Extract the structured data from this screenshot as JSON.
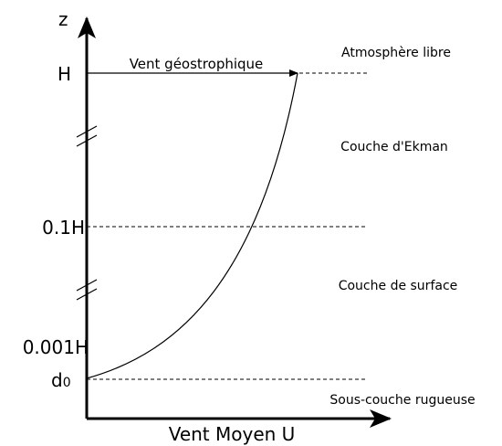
{
  "axes": {
    "z": "z",
    "x": "Vent Moyen U"
  },
  "levels": {
    "H": "H",
    "tenth": "0.1H",
    "thousandth": "0.001H",
    "d": {
      "base": "d",
      "sub": "0"
    }
  },
  "arrow_label": "Vent géostrophique",
  "layers": [
    "Atmosphère libre",
    "Couche  d'Ekman",
    "Couche de surface",
    "Sous-couche rugueuse"
  ]
}
